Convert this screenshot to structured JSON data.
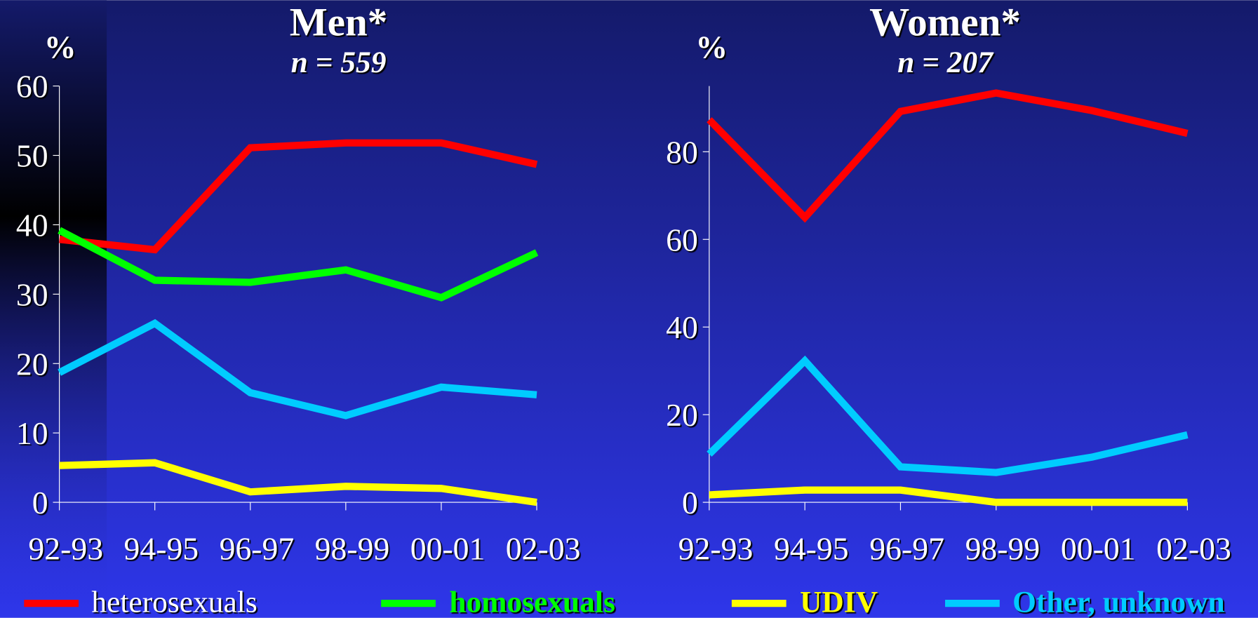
{
  "chart_data": [
    {
      "type": "line",
      "title": "Men*",
      "subtitle": "n = 559",
      "y_label": "%",
      "categories": [
        "92-93",
        "94-95",
        "96-97",
        "98-99",
        "00-01",
        "02-03"
      ],
      "ylim": [
        0,
        60
      ],
      "yticks": [
        0,
        10,
        20,
        30,
        40,
        50,
        60
      ],
      "series": [
        {
          "name": "heterosexuals",
          "color": "#ff0000",
          "values": [
            37.9,
            36.4,
            51.1,
            51.8,
            51.8,
            48.7
          ]
        },
        {
          "name": "homosexuals",
          "color": "#00ff00",
          "values": [
            39.2,
            32,
            31.7,
            33.5,
            29.5,
            36
          ]
        },
        {
          "name": "UDIV",
          "color": "#ffff00",
          "values": [
            5.3,
            5.7,
            1.5,
            2.3,
            2,
            0
          ]
        },
        {
          "name": "Other, unknown",
          "color": "#00ccff",
          "values": [
            18.7,
            25.8,
            15.8,
            12.5,
            16.6,
            15.5
          ]
        }
      ]
    },
    {
      "type": "line",
      "title": "Women*",
      "subtitle": "n = 207",
      "y_label": "%",
      "categories": [
        "92-93",
        "94-95",
        "96-97",
        "98-99",
        "00-01",
        "02-03"
      ],
      "ylim": [
        0,
        95
      ],
      "yticks": [
        0,
        20,
        40,
        60,
        80
      ],
      "series": [
        {
          "name": "heterosexuals",
          "color": "#ff0000",
          "values": [
            87.3,
            65,
            89.2,
            93.4,
            89.4,
            84.2
          ]
        },
        {
          "name": "UDIV",
          "color": "#ffff00",
          "values": [
            1.7,
            2.8,
            2.8,
            0,
            0,
            0
          ]
        },
        {
          "name": "Other, unknown",
          "color": "#00ccff",
          "values": [
            11,
            32.3,
            8.1,
            6.8,
            10.3,
            15.4
          ]
        }
      ]
    }
  ]
}
